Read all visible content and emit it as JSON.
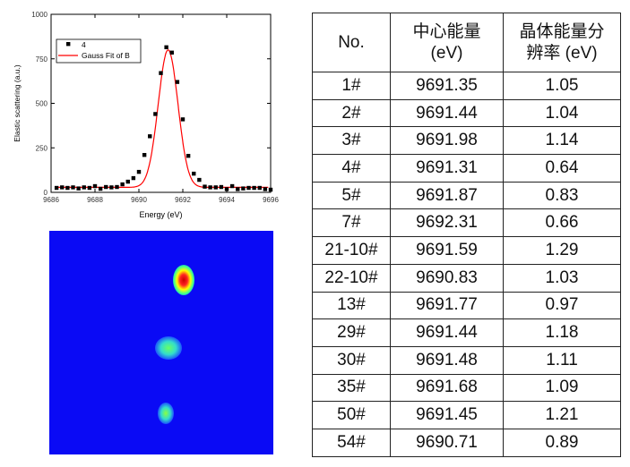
{
  "chart_data": {
    "type": "scatter",
    "xlabel": "Energy (eV)",
    "ylabel": "Elastic scattering (a.u.)",
    "xlim": [
      9686,
      9696
    ],
    "ylim": [
      0,
      1000
    ],
    "xticks": [
      "9686",
      "9688",
      "9690",
      "9692",
      "9694",
      "9696"
    ],
    "yticks": [
      "0",
      "250",
      "500",
      "750",
      "1000"
    ],
    "grid": false,
    "legend_position": "top-left",
    "series": [
      {
        "name": "4",
        "kind": "points",
        "color": "#000000",
        "x": [
          9686.25,
          9686.5,
          9686.75,
          9687,
          9687.25,
          9687.5,
          9687.75,
          9688,
          9688.25,
          9688.5,
          9688.75,
          9689,
          9689.25,
          9689.5,
          9689.75,
          9690,
          9690.25,
          9690.5,
          9690.75,
          9691,
          9691.25,
          9691.5,
          9691.75,
          9692,
          9692.25,
          9692.5,
          9692.75,
          9693,
          9693.25,
          9693.5,
          9693.75,
          9694,
          9694.25,
          9694.5,
          9694.75,
          9695,
          9695.25,
          9695.5,
          9695.75,
          9696
        ],
        "y": [
          25,
          28,
          25,
          28,
          22,
          28,
          25,
          35,
          20,
          30,
          28,
          30,
          45,
          60,
          80,
          115,
          210,
          315,
          440,
          670,
          815,
          785,
          620,
          410,
          205,
          105,
          70,
          32,
          28,
          28,
          30,
          18,
          35,
          18,
          22,
          25,
          25,
          25,
          18,
          15
        ]
      },
      {
        "name": "Gauss Fit of B",
        "kind": "line",
        "color": "#ff0000"
      }
    ]
  },
  "table": {
    "headers": [
      "No.",
      "中心能量\n(eV)",
      "晶体能量分\n辨率 (eV)"
    ],
    "rows": [
      [
        "1#",
        "9691.35",
        "1.05"
      ],
      [
        "2#",
        "9691.44",
        "1.04"
      ],
      [
        "3#",
        "9691.98",
        "1.14"
      ],
      [
        "4#",
        "9691.31",
        "0.64"
      ],
      [
        "5#",
        "9691.87",
        "0.83"
      ],
      [
        "7#",
        "9692.31",
        "0.66"
      ],
      [
        "21-10#",
        "9691.59",
        "1.29"
      ],
      [
        "22-10#",
        "9690.83",
        "1.03"
      ],
      [
        "13#",
        "9691.77",
        "0.97"
      ],
      [
        "29#",
        "9691.44",
        "1.18"
      ],
      [
        "30#",
        "9691.48",
        "1.11"
      ],
      [
        "35#",
        "9691.68",
        "1.09"
      ],
      [
        "50#",
        "9691.45",
        "1.21"
      ],
      [
        "54#",
        "9690.71",
        "0.89"
      ]
    ]
  },
  "detector_image": {
    "colormap": "jet",
    "spot_count": 3
  }
}
